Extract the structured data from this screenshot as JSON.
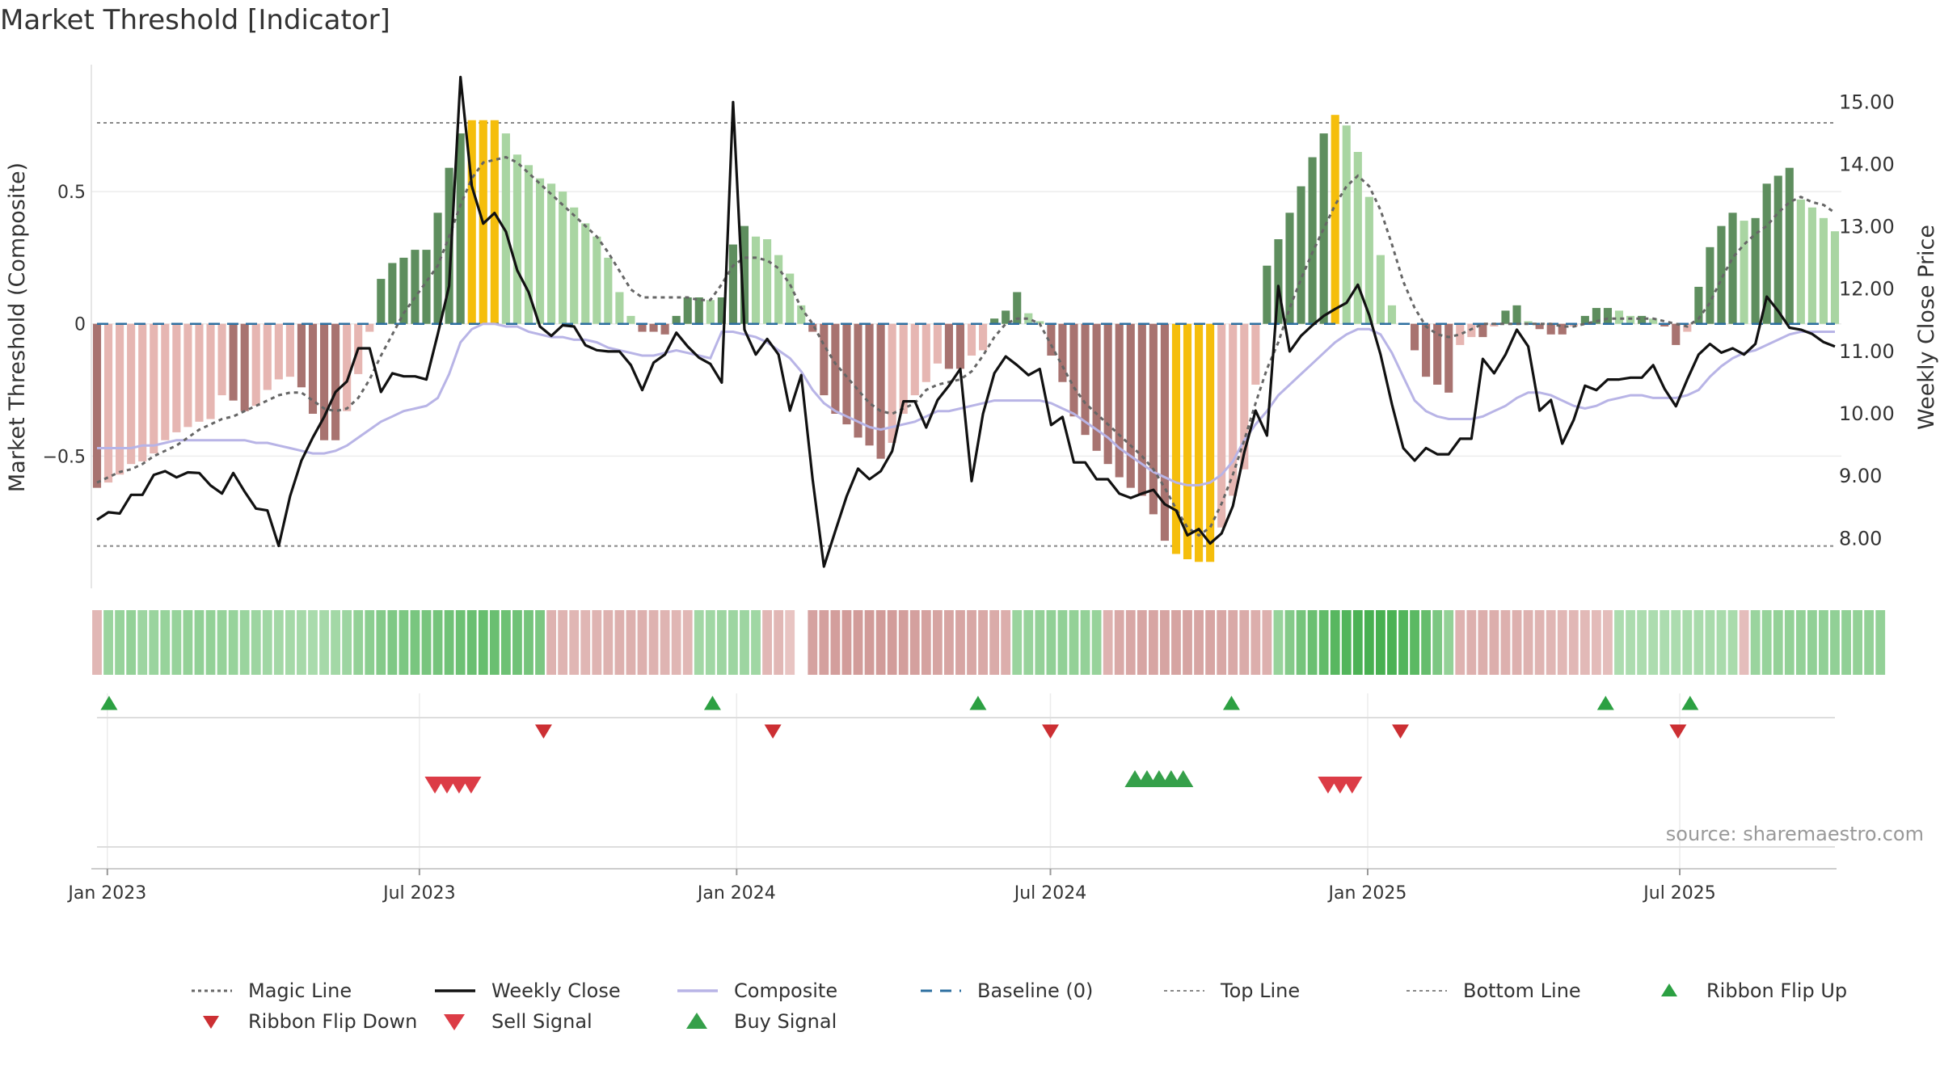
{
  "chart_data": {
    "type": "line+bar",
    "title": "Market Threshold [Indicator]",
    "ylabel_left": "Market Threshold (Composite)",
    "ylabel_right": "Weekly Close Price",
    "source": "source: sharemaestro.com",
    "x_range": [
      "2022-12-26",
      "2025-09-29"
    ],
    "left_ylim": [
      -1.0,
      0.98
    ],
    "right_ylim": [
      7.2,
      15.6
    ],
    "left_ticks": [
      {
        "v": 0.5,
        "label": "0.5"
      },
      {
        "v": 0,
        "label": "0"
      },
      {
        "v": -0.5,
        "label": "−0.5"
      }
    ],
    "right_ticks": [
      {
        "v": 15,
        "label": "15.00"
      },
      {
        "v": 14,
        "label": "14.00"
      },
      {
        "v": 13,
        "label": "13.00"
      },
      {
        "v": 12,
        "label": "12.00"
      },
      {
        "v": 11,
        "label": "11.00"
      },
      {
        "v": 10,
        "label": "10.00"
      },
      {
        "v": 9,
        "label": "9.00"
      },
      {
        "v": 8,
        "label": "8.00"
      }
    ],
    "x_ticks": [
      {
        "date": "2023-01-01",
        "label": "Jan 2023"
      },
      {
        "date": "2023-07-01",
        "label": "Jul 2023"
      },
      {
        "date": "2024-01-01",
        "label": "Jan 2024"
      },
      {
        "date": "2024-07-01",
        "label": "Jul 2024"
      },
      {
        "date": "2025-01-01",
        "label": "Jan 2025"
      },
      {
        "date": "2025-07-01",
        "label": "Jul 2025"
      }
    ],
    "top_line": 0.76,
    "bottom_line": -0.84,
    "baseline": 0,
    "composite_histogram": [
      -0.62,
      -0.6,
      -0.57,
      -0.53,
      -0.52,
      -0.49,
      -0.44,
      -0.41,
      -0.39,
      -0.37,
      -0.36,
      -0.27,
      -0.29,
      -0.33,
      -0.31,
      -0.25,
      -0.21,
      -0.2,
      -0.24,
      -0.34,
      -0.44,
      -0.44,
      -0.33,
      -0.19,
      -0.03,
      0.17,
      0.23,
      0.25,
      0.28,
      0.28,
      0.42,
      0.59,
      0.72,
      0.77,
      0.77,
      0.77,
      0.72,
      0.64,
      0.6,
      0.55,
      0.53,
      0.5,
      0.44,
      0.38,
      0.33,
      0.25,
      0.12,
      0.03,
      -0.03,
      -0.03,
      -0.04,
      0.03,
      0.1,
      0.1,
      0.09,
      0.1,
      0.3,
      0.37,
      0.33,
      0.32,
      0.26,
      0.19,
      0.07,
      -0.03,
      -0.27,
      -0.34,
      -0.38,
      -0.43,
      -0.46,
      -0.51,
      -0.45,
      -0.34,
      -0.27,
      -0.22,
      -0.15,
      -0.17,
      -0.17,
      -0.12,
      -0.1,
      0.02,
      0.05,
      0.12,
      0.04,
      0.01,
      -0.12,
      -0.22,
      -0.35,
      -0.42,
      -0.48,
      -0.53,
      -0.58,
      -0.62,
      -0.65,
      -0.72,
      -0.82,
      -0.87,
      -0.89,
      -0.9,
      -0.9,
      -0.77,
      -0.65,
      -0.55,
      -0.23,
      0.22,
      0.32,
      0.42,
      0.52,
      0.63,
      0.72,
      0.79,
      0.75,
      0.65,
      0.48,
      0.26,
      0.07,
      0.0,
      -0.1,
      -0.2,
      -0.23,
      -0.26,
      -0.08,
      -0.05,
      -0.05,
      -0.01,
      0.05,
      0.07,
      0.01,
      -0.02,
      -0.04,
      -0.04,
      -0.01,
      0.03,
      0.06,
      0.06,
      0.05,
      0.03,
      0.03,
      0.02,
      -0.01,
      -0.08,
      -0.03,
      0.14,
      0.29,
      0.37,
      0.42,
      0.39,
      0.4,
      0.53,
      0.56,
      0.59,
      0.47,
      0.44,
      0.4,
      0.35
    ],
    "magic_line": [
      -0.6,
      -0.58,
      -0.56,
      -0.55,
      -0.53,
      -0.5,
      -0.48,
      -0.46,
      -0.43,
      -0.4,
      -0.38,
      -0.36,
      -0.35,
      -0.33,
      -0.31,
      -0.29,
      -0.27,
      -0.26,
      -0.26,
      -0.29,
      -0.32,
      -0.33,
      -0.32,
      -0.28,
      -0.21,
      -0.12,
      -0.04,
      0.04,
      0.1,
      0.16,
      0.22,
      0.33,
      0.45,
      0.55,
      0.61,
      0.62,
      0.63,
      0.61,
      0.57,
      0.53,
      0.49,
      0.45,
      0.41,
      0.37,
      0.33,
      0.27,
      0.2,
      0.13,
      0.1,
      0.1,
      0.1,
      0.1,
      0.1,
      0.09,
      0.09,
      0.15,
      0.22,
      0.25,
      0.25,
      0.24,
      0.21,
      0.15,
      0.06,
      0.0,
      -0.08,
      -0.15,
      -0.2,
      -0.25,
      -0.3,
      -0.33,
      -0.34,
      -0.32,
      -0.3,
      -0.25,
      -0.23,
      -0.22,
      -0.21,
      -0.18,
      -0.12,
      -0.05,
      0.0,
      0.02,
      0.02,
      0.0,
      -0.08,
      -0.16,
      -0.24,
      -0.3,
      -0.34,
      -0.38,
      -0.42,
      -0.46,
      -0.5,
      -0.55,
      -0.62,
      -0.7,
      -0.77,
      -0.8,
      -0.77,
      -0.68,
      -0.57,
      -0.44,
      -0.3,
      -0.17,
      -0.07,
      0.06,
      0.17,
      0.27,
      0.36,
      0.45,
      0.52,
      0.56,
      0.52,
      0.43,
      0.3,
      0.16,
      0.06,
      -0.01,
      -0.04,
      -0.05,
      -0.04,
      -0.02,
      0.0,
      0.0,
      0.0,
      0.0,
      0.0,
      0.0,
      0.0,
      -0.01,
      -0.01,
      0.0,
      0.01,
      0.02,
      0.02,
      0.02,
      0.02,
      0.02,
      0.01,
      0.0,
      -0.01,
      0.02,
      0.08,
      0.17,
      0.25,
      0.3,
      0.34,
      0.37,
      0.42,
      0.46,
      0.48,
      0.46,
      0.45,
      0.42
    ],
    "composite_line": [
      -0.47,
      -0.47,
      -0.47,
      -0.47,
      -0.46,
      -0.46,
      -0.45,
      -0.44,
      -0.44,
      -0.44,
      -0.44,
      -0.44,
      -0.44,
      -0.44,
      -0.45,
      -0.45,
      -0.46,
      -0.47,
      -0.48,
      -0.49,
      -0.49,
      -0.48,
      -0.46,
      -0.43,
      -0.4,
      -0.37,
      -0.35,
      -0.33,
      -0.32,
      -0.31,
      -0.28,
      -0.19,
      -0.07,
      -0.02,
      0.0,
      0.0,
      -0.01,
      -0.01,
      -0.03,
      -0.04,
      -0.05,
      -0.05,
      -0.06,
      -0.06,
      -0.07,
      -0.09,
      -0.1,
      -0.11,
      -0.12,
      -0.12,
      -0.11,
      -0.1,
      -0.11,
      -0.12,
      -0.13,
      -0.03,
      -0.03,
      -0.04,
      -0.05,
      -0.07,
      -0.1,
      -0.13,
      -0.18,
      -0.25,
      -0.3,
      -0.33,
      -0.35,
      -0.37,
      -0.39,
      -0.4,
      -0.39,
      -0.38,
      -0.37,
      -0.35,
      -0.33,
      -0.33,
      -0.32,
      -0.31,
      -0.3,
      -0.29,
      -0.29,
      -0.29,
      -0.29,
      -0.29,
      -0.3,
      -0.32,
      -0.34,
      -0.37,
      -0.4,
      -0.43,
      -0.47,
      -0.5,
      -0.53,
      -0.56,
      -0.58,
      -0.6,
      -0.61,
      -0.61,
      -0.6,
      -0.57,
      -0.52,
      -0.44,
      -0.38,
      -0.33,
      -0.27,
      -0.23,
      -0.19,
      -0.15,
      -0.11,
      -0.07,
      -0.04,
      -0.02,
      -0.02,
      -0.04,
      -0.11,
      -0.2,
      -0.29,
      -0.33,
      -0.35,
      -0.36,
      -0.36,
      -0.36,
      -0.35,
      -0.33,
      -0.31,
      -0.28,
      -0.26,
      -0.26,
      -0.27,
      -0.29,
      -0.31,
      -0.32,
      -0.31,
      -0.29,
      -0.28,
      -0.27,
      -0.27,
      -0.28,
      -0.28,
      -0.28,
      -0.27,
      -0.25,
      -0.2,
      -0.16,
      -0.13,
      -0.11,
      -0.1,
      -0.08,
      -0.06,
      -0.04,
      -0.03,
      -0.03,
      -0.03,
      -0.03
    ],
    "weekly_close": [
      8.3,
      8.42,
      8.4,
      8.7,
      8.7,
      9.02,
      9.08,
      8.98,
      9.06,
      9.05,
      8.85,
      8.72,
      9.05,
      8.75,
      8.48,
      8.45,
      7.88,
      8.68,
      9.25,
      9.62,
      9.95,
      10.35,
      10.52,
      11.05,
      11.05,
      10.35,
      10.65,
      10.6,
      10.6,
      10.55,
      11.28,
      12.05,
      15.4,
      13.65,
      13.05,
      13.22,
      12.92,
      12.3,
      11.95,
      11.4,
      11.25,
      11.42,
      11.4,
      11.1,
      11.02,
      11.0,
      11.0,
      10.78,
      10.38,
      10.82,
      10.95,
      11.3,
      11.08,
      10.9,
      10.8,
      10.5,
      15.0,
      11.35,
      10.95,
      11.2,
      10.95,
      10.05,
      10.62,
      8.95,
      7.55,
      8.12,
      8.68,
      9.12,
      8.95,
      9.08,
      9.4,
      10.2,
      10.2,
      9.78,
      10.22,
      10.45,
      10.72,
      8.92,
      10.0,
      10.65,
      10.92,
      10.78,
      10.62,
      10.72,
      9.82,
      9.95,
      9.22,
      9.22,
      8.95,
      8.95,
      8.72,
      8.65,
      8.72,
      8.78,
      8.55,
      8.45,
      8.05,
      8.15,
      7.92,
      8.08,
      8.52,
      9.38,
      10.05,
      9.65,
      12.05,
      11.0,
      11.25,
      11.42,
      11.57,
      11.68,
      11.78,
      12.07,
      11.58,
      10.95,
      10.15,
      9.45,
      9.25,
      9.45,
      9.35,
      9.35,
      9.6,
      9.6,
      10.88,
      10.65,
      10.95,
      11.35,
      11.08,
      10.05,
      10.22,
      9.52,
      9.9,
      10.45,
      10.38,
      10.55,
      10.55,
      10.58,
      10.58,
      10.78,
      10.4,
      10.12,
      10.55,
      10.95,
      11.12,
      10.98,
      11.05,
      10.95,
      11.12,
      11.88,
      11.65,
      11.38,
      11.35,
      11.28,
      11.15,
      11.08
    ],
    "ribbon_strength": [
      -0.35,
      0.4,
      0.42,
      0.45,
      0.38,
      0.4,
      0.42,
      0.42,
      0.45,
      0.46,
      0.45,
      0.43,
      0.42,
      0.4,
      0.38,
      0.36,
      0.34,
      0.33,
      0.32,
      0.3,
      0.32,
      0.34,
      0.38,
      0.45,
      0.5,
      0.55,
      0.58,
      0.6,
      0.62,
      0.63,
      0.65,
      0.68,
      0.7,
      0.72,
      0.74,
      0.72,
      0.7,
      0.68,
      0.65,
      0.6,
      -0.4,
      -0.38,
      -0.36,
      -0.36,
      -0.38,
      -0.4,
      -0.42,
      -0.42,
      -0.42,
      -0.4,
      -0.38,
      -0.36,
      -0.35,
      0.35,
      0.36,
      0.38,
      0.38,
      0.38,
      0.36,
      -0.35,
      -0.34,
      -0.2,
      -0.55,
      -0.58,
      -0.6,
      -0.62,
      -0.64,
      -0.65,
      -0.66,
      -0.66,
      -0.64,
      -0.62,
      -0.6,
      -0.58,
      -0.56,
      -0.55,
      -0.54,
      -0.52,
      -0.5,
      -0.48,
      -0.45,
      0.4,
      0.42,
      0.44,
      0.46,
      0.46,
      0.45,
      0.44,
      0.42,
      -0.4,
      -0.5,
      -0.52,
      -0.54,
      -0.55,
      -0.56,
      -0.56,
      -0.56,
      -0.55,
      -0.54,
      -0.52,
      -0.5,
      -0.48,
      -0.45,
      -0.42,
      0.42,
      0.55,
      0.65,
      0.72,
      0.78,
      0.84,
      0.88,
      0.92,
      0.95,
      0.95,
      0.93,
      0.88,
      0.82,
      0.75,
      0.6,
      0.45,
      -0.4,
      -0.42,
      -0.44,
      -0.44,
      -0.42,
      -0.42,
      -0.4,
      -0.38,
      -0.36,
      -0.35,
      -0.34,
      -0.32,
      -0.3,
      -0.28,
      0.28,
      0.28,
      0.28,
      0.28,
      0.28,
      0.28,
      0.3,
      0.3,
      0.3,
      0.3,
      0.3,
      -0.28,
      0.4,
      0.42,
      0.44,
      0.45,
      0.45,
      0.46,
      0.46,
      0.46,
      0.46,
      0.45,
      0.45,
      0.45
    ],
    "ribbon_flip_up": [
      "2023-01-02",
      "2023-12-18",
      "2024-05-20",
      "2024-10-14",
      "2025-05-19",
      "2025-07-07"
    ],
    "ribbon_flip_down": [
      "2023-09-11",
      "2024-01-22",
      "2024-07-01",
      "2025-01-20",
      "2025-06-30"
    ],
    "sell_signals": [
      "2023-07-10",
      "2023-07-17",
      "2023-07-24",
      "2023-07-31",
      "2024-12-09",
      "2024-12-16",
      "2024-12-23"
    ],
    "buy_signals": [
      "2024-08-19",
      "2024-08-26",
      "2024-09-02",
      "2024-09-09",
      "2024-09-16"
    ],
    "legend": [
      {
        "key": "magic",
        "label": "Magic Line",
        "color": "#666666"
      },
      {
        "key": "close",
        "label": "Weekly Close",
        "color": "#111111"
      },
      {
        "key": "composite",
        "label": "Composite",
        "color": "#b8b4e6"
      },
      {
        "key": "baseline",
        "label": "Baseline (0)",
        "color": "#2d6fa0"
      },
      {
        "key": "top",
        "label": "Top Line",
        "color": "#888888"
      },
      {
        "key": "bottom",
        "label": "Bottom Line",
        "color": "#888888"
      },
      {
        "key": "flipup",
        "label": "Ribbon Flip Up",
        "color": "#2ca042"
      },
      {
        "key": "flipdown",
        "label": "Ribbon Flip Down",
        "color": "#cc2f33"
      },
      {
        "key": "sell",
        "label": "Sell Signal",
        "color": "#dc3c46"
      },
      {
        "key": "buy",
        "label": "Buy Signal",
        "color": "#35a04a"
      }
    ],
    "colors": {
      "bull_light": "#a9d5a2",
      "bull_dark": "#5e8e5e",
      "bear_light": "#e6b6b2",
      "bear_dark": "#a87370",
      "extreme": "#f5be0c",
      "grid": "#ececec"
    }
  }
}
